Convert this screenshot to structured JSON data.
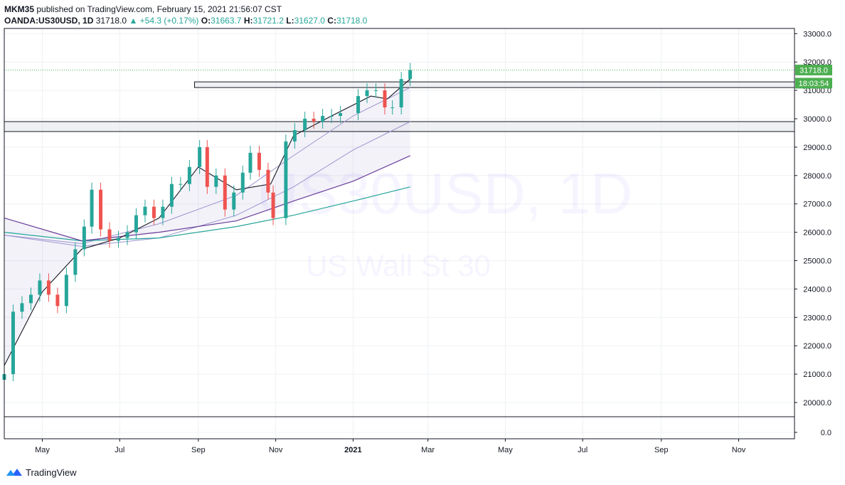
{
  "header": {
    "publisher": "MKM35",
    "published_text": "published on TradingView.com, February 15, 2021 21:56:07 CST",
    "symbol": "OANDA:US30USD, 1D",
    "last": "31718.0",
    "change": "+54.3 (+0.17%)",
    "o_label": "O:",
    "o_value": "31663.7",
    "h_label": "H:",
    "h_value": "31721.2",
    "l_label": "L:",
    "l_value": "31627.0",
    "c_label": "C:",
    "c_value": "31718.0"
  },
  "watermark": {
    "symbol": "US30USD, 1D",
    "description": "US Wall St 30"
  },
  "price_tags": {
    "last_price": "31718.0",
    "countdown": "18:03:54"
  },
  "footer": {
    "brand": "TradingView"
  },
  "colors": {
    "up": "#26a69a",
    "down": "#ef5350",
    "ema_main": "#131722",
    "ema_band": "#9c95cf",
    "sma_slow": "#6a3d9a",
    "sma_200": "#26a69a",
    "last_price": "#4caf50"
  },
  "chart_data": {
    "type": "candlestick",
    "y_axis": {
      "min": 0,
      "max": 33000,
      "ticks": [
        33000,
        32000,
        31000,
        30000,
        29000,
        28000,
        27000,
        26000,
        25000,
        24000,
        23000,
        22000,
        21000,
        20000,
        0
      ],
      "tick_labels": [
        "33000.0",
        "32000.0",
        "31000.0",
        "30000.0",
        "29000.0",
        "28000.0",
        "27000.0",
        "26000.0",
        "25000.0",
        "24000.0",
        "23000.0",
        "22000.0",
        "21000.0",
        "20000.0",
        "0.0"
      ]
    },
    "x_axis": {
      "labels": [
        "May",
        "Jul",
        "Sep",
        "Nov",
        "2021",
        "Mar",
        "May",
        "Jul",
        "Sep",
        "Nov"
      ],
      "label_dates": [
        "2020-05-01",
        "2020-07-01",
        "2020-09-01",
        "2020-11-01",
        "2021-01-01",
        "2021-03-01",
        "2021-05-01",
        "2021-07-01",
        "2021-09-01",
        "2021-11-01"
      ],
      "range": [
        "2020-04-01",
        "2021-12-15"
      ]
    },
    "price_series": [
      {
        "date": "2020-04-01",
        "close": 21000
      },
      {
        "date": "2020-04-08",
        "close": 23200
      },
      {
        "date": "2020-04-15",
        "close": 23500
      },
      {
        "date": "2020-04-22",
        "close": 23800
      },
      {
        "date": "2020-04-29",
        "close": 24300
      },
      {
        "date": "2020-05-06",
        "close": 23800
      },
      {
        "date": "2020-05-13",
        "close": 23400
      },
      {
        "date": "2020-05-20",
        "close": 24500
      },
      {
        "date": "2020-05-27",
        "close": 25400
      },
      {
        "date": "2020-06-03",
        "close": 26200
      },
      {
        "date": "2020-06-09",
        "close": 27500
      },
      {
        "date": "2020-06-16",
        "close": 26100
      },
      {
        "date": "2020-06-23",
        "close": 25700
      },
      {
        "date": "2020-06-30",
        "close": 25800
      },
      {
        "date": "2020-07-07",
        "close": 26000
      },
      {
        "date": "2020-07-14",
        "close": 26600
      },
      {
        "date": "2020-07-21",
        "close": 26900
      },
      {
        "date": "2020-07-28",
        "close": 26500
      },
      {
        "date": "2020-08-04",
        "close": 26900
      },
      {
        "date": "2020-08-11",
        "close": 27700
      },
      {
        "date": "2020-08-18",
        "close": 27700
      },
      {
        "date": "2020-08-25",
        "close": 28300
      },
      {
        "date": "2020-09-02",
        "close": 29000
      },
      {
        "date": "2020-09-08",
        "close": 27600
      },
      {
        "date": "2020-09-15",
        "close": 28000
      },
      {
        "date": "2020-09-22",
        "close": 26800
      },
      {
        "date": "2020-09-29",
        "close": 27400
      },
      {
        "date": "2020-10-06",
        "close": 28100
      },
      {
        "date": "2020-10-12",
        "close": 28800
      },
      {
        "date": "2020-10-19",
        "close": 28200
      },
      {
        "date": "2020-10-26",
        "close": 27400
      },
      {
        "date": "2020-10-30",
        "close": 26500
      },
      {
        "date": "2020-11-09",
        "close": 29200
      },
      {
        "date": "2020-11-16",
        "close": 29600
      },
      {
        "date": "2020-11-24",
        "close": 30000
      },
      {
        "date": "2020-12-01",
        "close": 29900
      },
      {
        "date": "2020-12-08",
        "close": 30100
      },
      {
        "date": "2020-12-15",
        "close": 30100
      },
      {
        "date": "2020-12-22",
        "close": 30200
      },
      {
        "date": "2021-01-05",
        "close": 30800
      },
      {
        "date": "2021-01-12",
        "close": 31000
      },
      {
        "date": "2021-01-19",
        "close": 31000
      },
      {
        "date": "2021-01-26",
        "close": 30400
      },
      {
        "date": "2021-02-01",
        "close": 30400
      },
      {
        "date": "2021-02-08",
        "close": 31400
      },
      {
        "date": "2021-02-15",
        "close": 31718
      }
    ],
    "ema_main": [
      {
        "date": "2020-04-01",
        "value": 21300
      },
      {
        "date": "2020-05-01",
        "value": 23900
      },
      {
        "date": "2020-06-01",
        "value": 25400
      },
      {
        "date": "2020-07-01",
        "value": 25800
      },
      {
        "date": "2020-08-01",
        "value": 26500
      },
      {
        "date": "2020-09-01",
        "value": 28300
      },
      {
        "date": "2020-10-01",
        "value": 27500
      },
      {
        "date": "2020-10-28",
        "value": 27700
      },
      {
        "date": "2020-11-15",
        "value": 29400
      },
      {
        "date": "2020-12-15",
        "value": 30100
      },
      {
        "date": "2021-01-15",
        "value": 30800
      },
      {
        "date": "2021-01-28",
        "value": 30700
      },
      {
        "date": "2021-02-15",
        "value": 31400
      }
    ],
    "ema_band_upper": [
      {
        "date": "2020-04-01",
        "value": 25900
      },
      {
        "date": "2020-06-01",
        "value": 25600
      },
      {
        "date": "2020-08-01",
        "value": 26300
      },
      {
        "date": "2020-10-01",
        "value": 27300
      },
      {
        "date": "2020-11-15",
        "value": 28700
      },
      {
        "date": "2021-01-01",
        "value": 30100
      },
      {
        "date": "2021-02-15",
        "value": 31100
      }
    ],
    "ema_band_lower": [
      {
        "date": "2020-04-01",
        "value": 25900
      },
      {
        "date": "2020-06-01",
        "value": 25500
      },
      {
        "date": "2020-08-01",
        "value": 25800
      },
      {
        "date": "2020-10-01",
        "value": 26600
      },
      {
        "date": "2020-11-15",
        "value": 27600
      },
      {
        "date": "2021-01-01",
        "value": 28900
      },
      {
        "date": "2021-02-15",
        "value": 29900
      }
    ],
    "sma_slow": [
      {
        "date": "2020-04-01",
        "value": 26500
      },
      {
        "date": "2020-06-01",
        "value": 25700
      },
      {
        "date": "2020-08-01",
        "value": 26000
      },
      {
        "date": "2020-10-01",
        "value": 26400
      },
      {
        "date": "2020-11-15",
        "value": 27100
      },
      {
        "date": "2021-01-01",
        "value": 27800
      },
      {
        "date": "2021-02-15",
        "value": 28700
      }
    ],
    "sma_200": [
      {
        "date": "2020-04-01",
        "value": 26000
      },
      {
        "date": "2020-06-01",
        "value": 25700
      },
      {
        "date": "2020-08-01",
        "value": 25800
      },
      {
        "date": "2020-10-01",
        "value": 26200
      },
      {
        "date": "2020-11-15",
        "value": 26600
      },
      {
        "date": "2021-01-01",
        "value": 27100
      },
      {
        "date": "2021-02-15",
        "value": 27600
      }
    ],
    "zones": [
      {
        "from_date": "2020-08-29",
        "to_date": "2021-12-15",
        "low": 31100,
        "high": 31300
      },
      {
        "from_date": "2020-04-01",
        "to_date": "2021-12-15",
        "low": 29550,
        "high": 29900
      }
    ],
    "last_price_line": 31718,
    "separator_level": 19500
  }
}
